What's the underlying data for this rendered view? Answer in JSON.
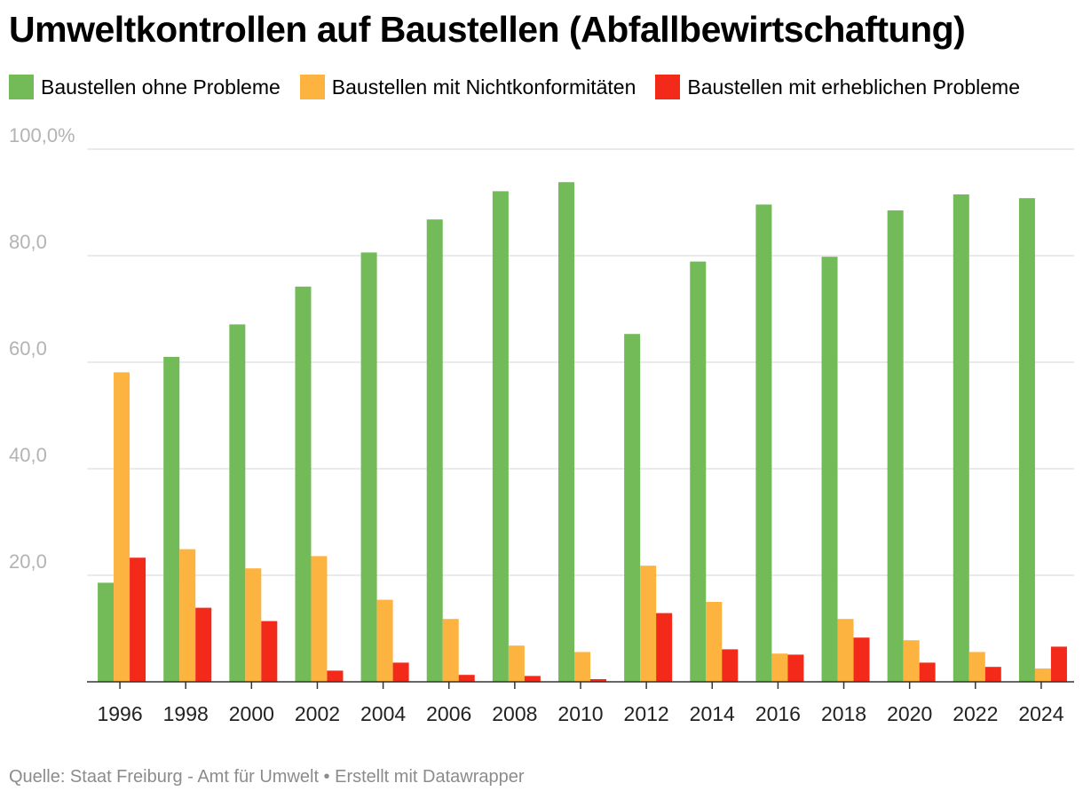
{
  "title": "Umweltkontrollen auf Baustellen (Abfallbewirtschaftung)",
  "source": "Quelle: Staat Freiburg - Amt für Umwelt • Erstellt mit Datawrapper",
  "legend": [
    {
      "label": "Baustellen ohne Probleme",
      "color": "#72bb58"
    },
    {
      "label": "Baustellen mit Nichtkonformitäten",
      "color": "#fdb33f"
    },
    {
      "label": "Baustellen mit erheblichen Probleme",
      "color": "#f3291a"
    }
  ],
  "chart_data": {
    "type": "bar",
    "title": "Umweltkontrollen auf Baustellen (Abfallbewirtschaftung)",
    "categories": [
      "1996",
      "1998",
      "2000",
      "2002",
      "2004",
      "2006",
      "2008",
      "2010",
      "2012",
      "2014",
      "2016",
      "2018",
      "2020",
      "2022",
      "2024"
    ],
    "series": [
      {
        "name": "Baustellen ohne Probleme",
        "color": "#72bb58",
        "values": [
          18.6,
          61.0,
          67.1,
          74.2,
          80.6,
          86.8,
          92.1,
          93.8,
          65.3,
          78.9,
          89.6,
          79.8,
          88.5,
          91.5,
          90.8
        ]
      },
      {
        "name": "Baustellen mit Nichtkonformitäten",
        "color": "#fdb33f",
        "values": [
          58.1,
          24.9,
          21.3,
          23.6,
          15.4,
          11.8,
          6.8,
          5.6,
          21.8,
          15.0,
          5.3,
          11.8,
          7.8,
          5.6,
          2.5
        ]
      },
      {
        "name": "Baustellen mit erheblichen Probleme",
        "color": "#f3291a",
        "values": [
          23.3,
          13.9,
          11.4,
          2.1,
          3.6,
          1.3,
          1.1,
          0.5,
          12.9,
          6.1,
          5.1,
          8.3,
          3.6,
          2.8,
          6.6
        ]
      }
    ],
    "y_ticks": [
      "20,0",
      "40,0",
      "60,0",
      "80,0",
      "100,0%"
    ],
    "y_tick_values": [
      20,
      40,
      60,
      80,
      100
    ],
    "ylim": [
      0,
      100
    ],
    "xlabel": "",
    "ylabel": "",
    "grid": true,
    "legend_position": "top-left"
  }
}
